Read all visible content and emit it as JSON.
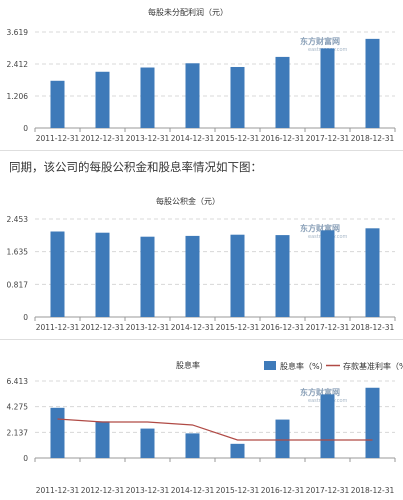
{
  "intro_text": "同期，该公司的每股公积金和股息率情况如下图：",
  "watermark": {
    "text": "东方财富网",
    "sub": "eastmoney.com"
  },
  "colors": {
    "bar": "#3e7ab9",
    "line": "#b04a45",
    "grid": "#d8d8d8",
    "axis": "#999999"
  },
  "chart_data": [
    {
      "type": "bar",
      "title": "每股未分配利润（元）",
      "categories": [
        "2011-12-31",
        "2012-12-31",
        "2013-12-31",
        "2014-12-31",
        "2015-12-31",
        "2016-12-31",
        "2017-12-31",
        "2018-12-31"
      ],
      "series": [
        {
          "values": [
            1.78,
            2.12,
            2.28,
            2.44,
            2.3,
            2.68,
            3.0,
            3.36
          ]
        }
      ],
      "yticks": [
        "0",
        "1.206",
        "2.412",
        "3.619"
      ],
      "ylim": [
        0,
        3.619
      ],
      "grid": true
    },
    {
      "type": "bar",
      "title": "每股公积金（元）",
      "categories": [
        "2011-12-31",
        "2012-12-31",
        "2013-12-31",
        "2014-12-31",
        "2015-12-31",
        "2016-12-31",
        "2017-12-31",
        "2018-12-31"
      ],
      "series": [
        {
          "values": [
            2.14,
            2.11,
            2.01,
            2.03,
            2.06,
            2.05,
            2.17,
            2.22
          ]
        }
      ],
      "yticks": [
        "0",
        "0.817",
        "1.635",
        "2.453"
      ],
      "ylim": [
        0,
        2.453
      ],
      "grid": true
    },
    {
      "type": "bar",
      "title": "股息率",
      "categories": [
        "2011-12-31",
        "2012-12-31",
        "2013-12-31",
        "2014-12-31",
        "2015-12-31",
        "2016-12-31",
        "2017-12-31",
        "2018-12-31"
      ],
      "series": [
        {
          "name": "股息率（%）",
          "type": "bar",
          "values": [
            4.18,
            3.05,
            2.45,
            2.05,
            1.18,
            3.2,
            5.3,
            5.85
          ]
        },
        {
          "name": "存款基准利率（%",
          "type": "line",
          "values": [
            3.25,
            3.0,
            3.0,
            2.75,
            1.5,
            1.5,
            1.5,
            1.5
          ]
        }
      ],
      "yticks": [
        "0",
        "2.137",
        "4.275",
        "6.413"
      ],
      "ylim": [
        0,
        6.413
      ],
      "grid": true,
      "legend_position": "top-right"
    }
  ]
}
